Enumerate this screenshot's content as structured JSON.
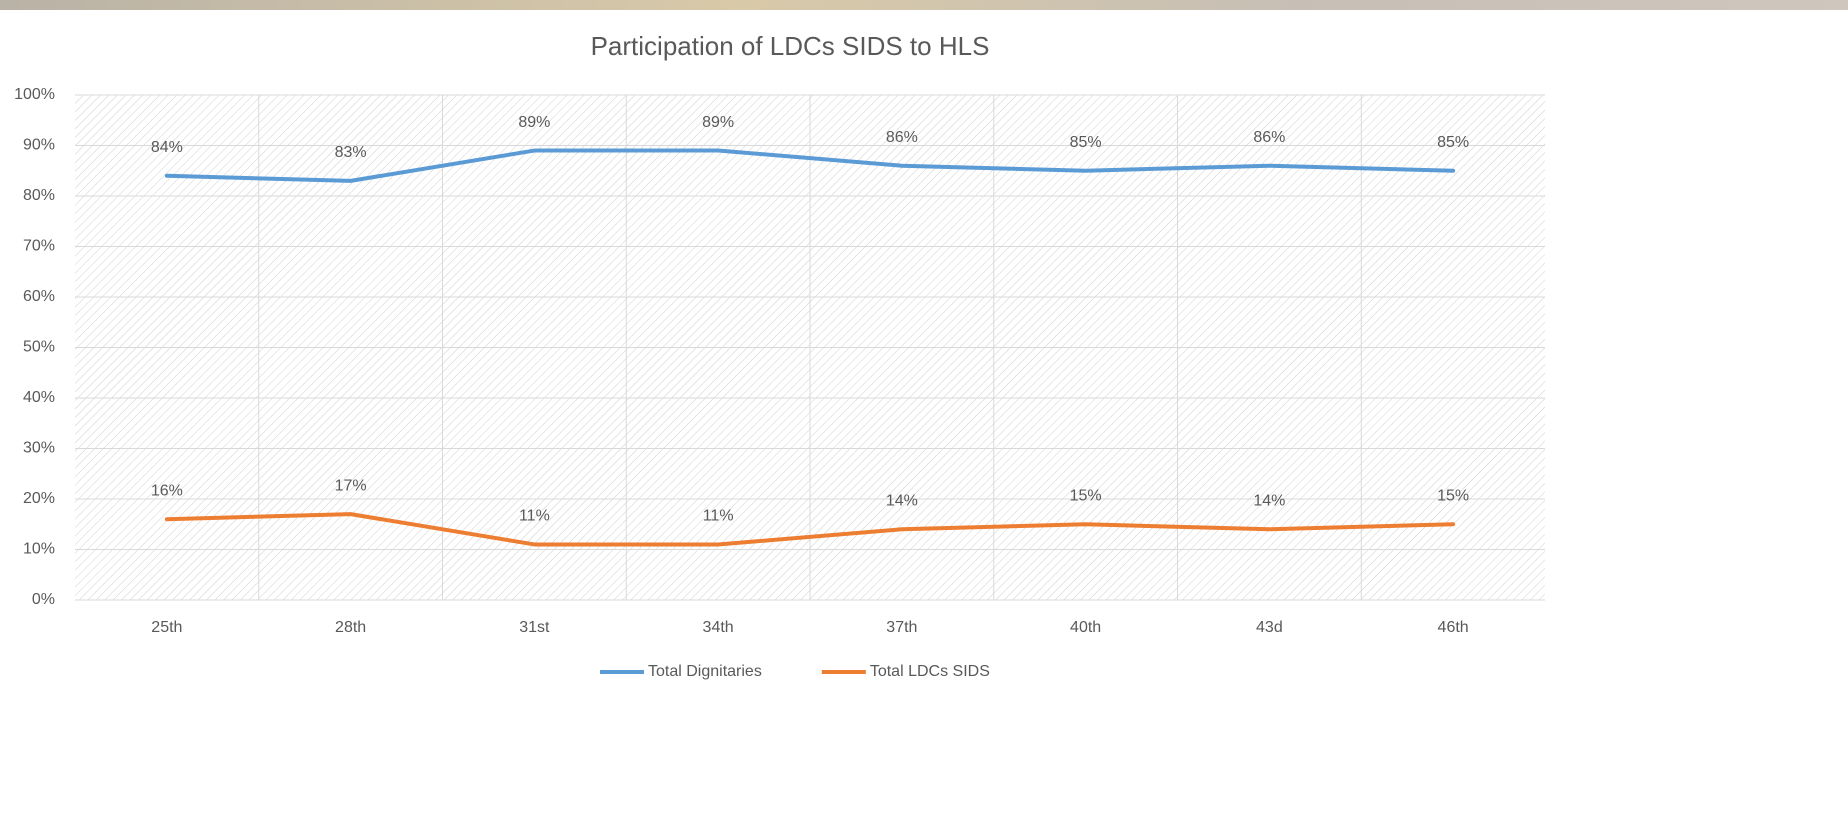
{
  "chart_data": {
    "type": "line",
    "title": "Participation of LDCs SIDS to HLS",
    "categories": [
      "25th",
      "28th",
      "31st",
      "34th",
      "37th",
      "40th",
      "43d",
      "46th"
    ],
    "series": [
      {
        "name": "Total Dignitaries",
        "color": "#5b9bd5",
        "values": [
          84,
          83,
          89,
          89,
          86,
          85,
          86,
          85
        ],
        "value_labels": [
          "84%",
          "83%",
          "89%",
          "89%",
          "86%",
          "85%",
          "86%",
          "85%"
        ]
      },
      {
        "name": "Total LDCs SIDS",
        "color": "#ed7d31",
        "values": [
          16,
          17,
          11,
          11,
          14,
          15,
          14,
          15
        ],
        "value_labels": [
          "16%",
          "17%",
          "11%",
          "11%",
          "14%",
          "15%",
          "14%",
          "15%"
        ]
      }
    ],
    "ylim": [
      0,
      100
    ],
    "yticks": [
      {
        "value": 0,
        "label": "0%"
      },
      {
        "value": 10,
        "label": "10%"
      },
      {
        "value": 20,
        "label": "20%"
      },
      {
        "value": 30,
        "label": "30%"
      },
      {
        "value": 40,
        "label": "40%"
      },
      {
        "value": 50,
        "label": "50%"
      },
      {
        "value": 60,
        "label": "60%"
      },
      {
        "value": 70,
        "label": "70%"
      },
      {
        "value": 80,
        "label": "80%"
      },
      {
        "value": 90,
        "label": "90%"
      },
      {
        "value": 100,
        "label": "100%"
      }
    ],
    "grid": true,
    "legend": "bottom"
  }
}
